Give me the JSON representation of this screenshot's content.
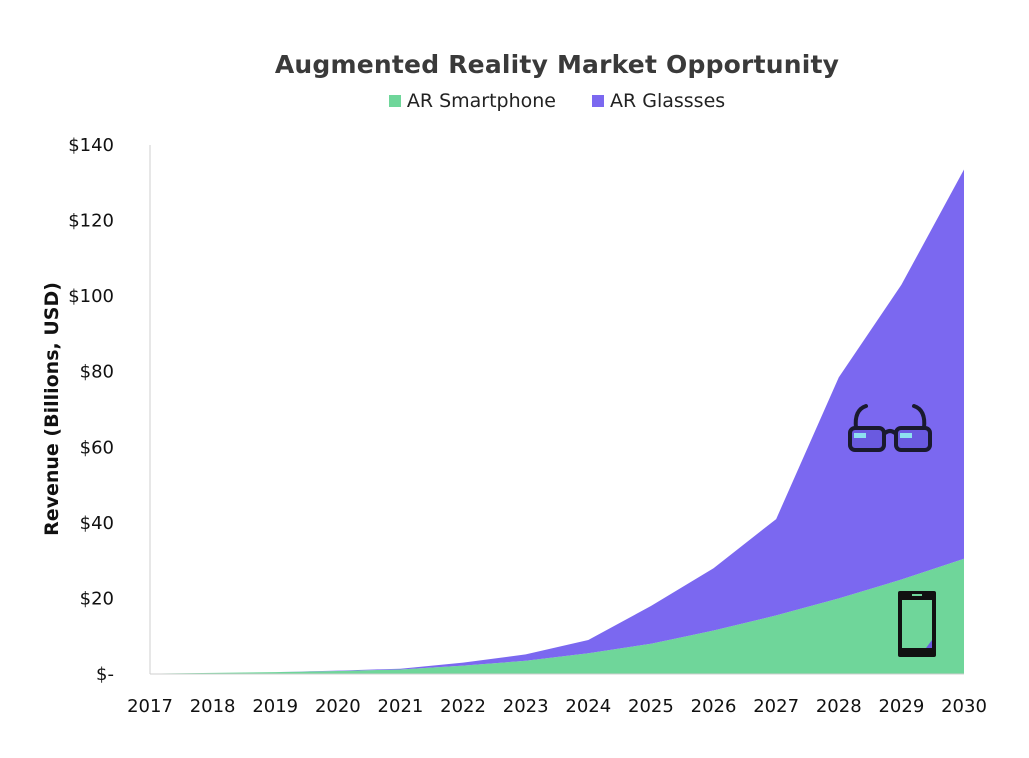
{
  "chart_data": {
    "type": "area",
    "title": "Augmented Reality Market Opportunity",
    "xlabel": "",
    "ylabel": "Revenue (Billions, USD)",
    "x": [
      "2017",
      "2018",
      "2019",
      "2020",
      "2021",
      "2022",
      "2023",
      "2024",
      "2025",
      "2026",
      "2027",
      "2028",
      "2029",
      "2030"
    ],
    "ylim": [
      0,
      140
    ],
    "yticks": [
      0,
      20,
      40,
      60,
      80,
      100,
      120,
      140
    ],
    "ytick_labels": [
      "$-",
      "$20",
      "$40",
      "$60",
      "$80",
      "$100",
      "$120",
      "$140"
    ],
    "stacked": true,
    "grid": false,
    "legend_position": "top",
    "series": [
      {
        "name": "AR Smartphone",
        "color": "#6fd69a",
        "values": [
          0.1,
          0.3,
          0.5,
          0.8,
          1.2,
          2.2,
          3.5,
          5.5,
          8.0,
          11.5,
          15.5,
          20.0,
          25.0,
          30.5
        ]
      },
      {
        "name": "AR Glassses",
        "color": "#7b68f0",
        "values": [
          0.0,
          0.0,
          0.0,
          0.1,
          0.2,
          0.8,
          1.7,
          3.5,
          10.0,
          16.5,
          25.5,
          58.5,
          78.0,
          103.0
        ]
      }
    ],
    "annotations": [
      {
        "icon": "glasses-icon",
        "series": "AR Glassses"
      },
      {
        "icon": "smartphone-icon",
        "series": "AR Smartphone"
      }
    ]
  }
}
